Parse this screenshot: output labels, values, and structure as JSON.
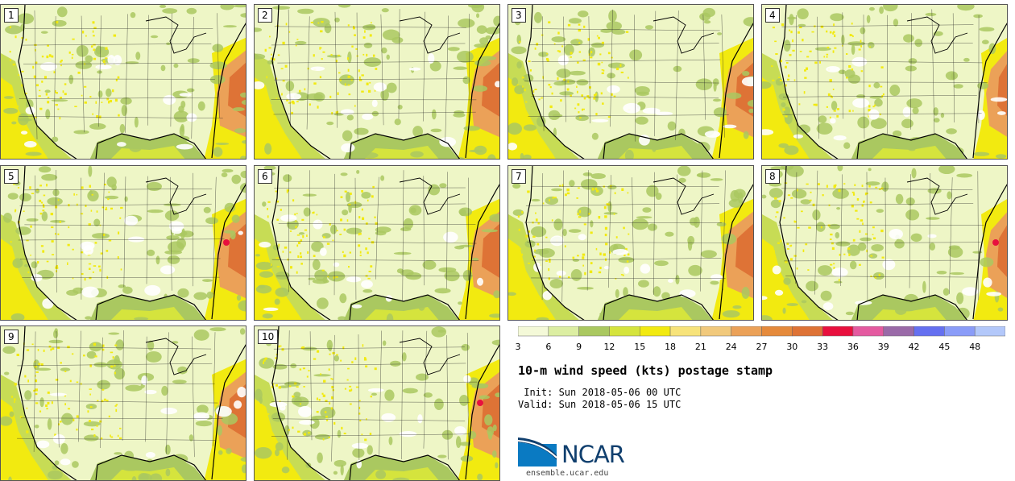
{
  "panels": [
    {
      "label": "1"
    },
    {
      "label": "2"
    },
    {
      "label": "3"
    },
    {
      "label": "4"
    },
    {
      "label": "5"
    },
    {
      "label": "6"
    },
    {
      "label": "7"
    },
    {
      "label": "8"
    },
    {
      "label": "9"
    },
    {
      "label": "10"
    }
  ],
  "colorbar": {
    "labels": [
      "3",
      "6",
      "9",
      "12",
      "15",
      "18",
      "21",
      "24",
      "27",
      "30",
      "33",
      "36",
      "39",
      "42",
      "45",
      "48"
    ],
    "colors": [
      "#f4f9d8",
      "#dceea2",
      "#aac860",
      "#d5e43d",
      "#f2ea10",
      "#f7e37a",
      "#f1c97c",
      "#eba158",
      "#e58a3c",
      "#de7336",
      "#e8103e",
      "#e45aa0",
      "#9a6aa8",
      "#6570f0",
      "#8a9cf8",
      "#b3c8fa"
    ]
  },
  "text": {
    "title": "10-m wind speed (kts) postage stamp",
    "init": " Init: Sun 2018-05-06 00 UTC",
    "valid": "Valid: Sun 2018-05-06 15 UTC",
    "logo": "NCAR",
    "url": "ensemble.ucar.edu"
  },
  "colors": {
    "land_light": "#eef6c6",
    "land_green": "#aac860",
    "yellow": "#f2ea10",
    "orange": "#de7336",
    "red": "#e8103e",
    "ncar_blue": "#103f6e"
  }
}
